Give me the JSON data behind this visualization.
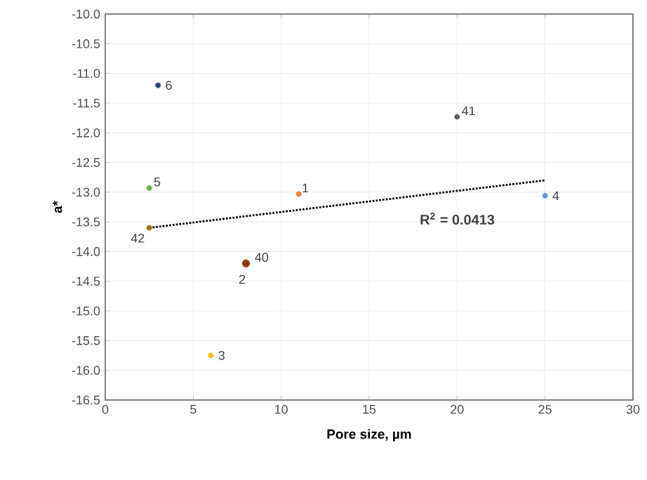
{
  "chart_data": {
    "type": "scatter",
    "xlabel": "Pore size, µm",
    "ylabel": "a*",
    "xlim": [
      0,
      30
    ],
    "xticks": [
      0,
      5,
      10,
      15,
      20,
      25,
      30
    ],
    "ylim": [
      -16.5,
      -10
    ],
    "yticks": [
      {
        "value": -16.5,
        "label": "-16.5"
      },
      {
        "value": -16,
        "label": "-16.0"
      },
      {
        "value": -15.5,
        "label": "-15.5"
      },
      {
        "value": -15,
        "label": "-15.0"
      },
      {
        "value": -14.5,
        "label": "-14.5"
      },
      {
        "value": -14,
        "label": "-14.0"
      },
      {
        "value": -13.5,
        "label": "-13.5"
      },
      {
        "value": -13,
        "label": "-13.0"
      },
      {
        "value": -12.5,
        "label": "-12.5"
      },
      {
        "value": -12,
        "label": "-12.0"
      },
      {
        "value": -11.5,
        "label": "-11.5"
      },
      {
        "value": -11,
        "label": "-11.0"
      },
      {
        "value": -10.5,
        "label": "-10.5"
      },
      {
        "value": -10,
        "label": "-10.0"
      }
    ],
    "grid": true,
    "marker": "circle",
    "series": [
      {
        "x": [
          11,
          8,
          6,
          25,
          2.5,
          3,
          8,
          20,
          2.5
        ],
        "values": [
          -13.03,
          -14.2,
          -15.75,
          -13.06,
          -12.93,
          -11.2,
          -14.2,
          -11.73,
          -13.6
        ],
        "colors": [
          "#ed7d31",
          "#9e480e",
          "#ffc000",
          "#5b9bd5",
          "#70ad47",
          "#264478",
          "#843c0c",
          "#636363",
          "#997300"
        ]
      },
      {
        "type": "line",
        "x": [
          2.5,
          25
        ],
        "values": [
          -13.6,
          -12.8
        ],
        "color": "#000000",
        "line_style": "dotted",
        "marker": "none"
      }
    ],
    "annotations": [
      {
        "text": "1",
        "x": 11,
        "y": -13.03
      },
      {
        "text": "2",
        "x": 8,
        "y": -14.2
      },
      {
        "text": "3",
        "x": 6,
        "y": -15.75
      },
      {
        "text": "4",
        "x": 25,
        "y": -13.06
      },
      {
        "text": "5",
        "x": 2.5,
        "y": -12.93
      },
      {
        "text": "6",
        "x": 3,
        "y": -11.2
      },
      {
        "text": "40",
        "x": 8,
        "y": -14.2
      },
      {
        "text": "41",
        "x": 20,
        "y": -11.73
      },
      {
        "text": "42",
        "x": 2.5,
        "y": -13.6
      },
      "R$^{2}$ = 0.0413"
    ]
  }
}
